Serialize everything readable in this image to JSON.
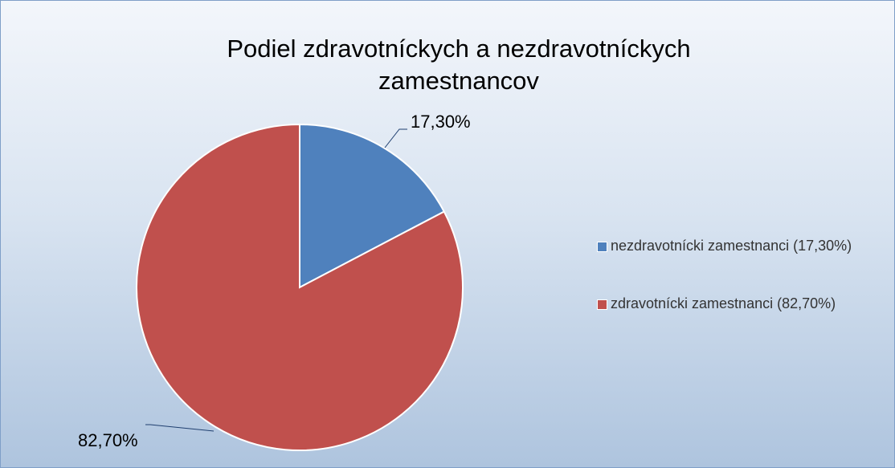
{
  "chart_data": {
    "type": "pie",
    "title": "Podiel zdravotníckych a nezdravotníckych zamestnancov",
    "categories": [
      "nezdravotnícki zamestnanci (17,30%)",
      "zdravotnícki zamestnanci (82,70%)"
    ],
    "values": [
      17.3,
      82.7
    ],
    "value_labels": [
      "17,30%",
      "82,70%"
    ],
    "colors": [
      "#4f81bd",
      "#c0504d"
    ],
    "legend": "right"
  }
}
